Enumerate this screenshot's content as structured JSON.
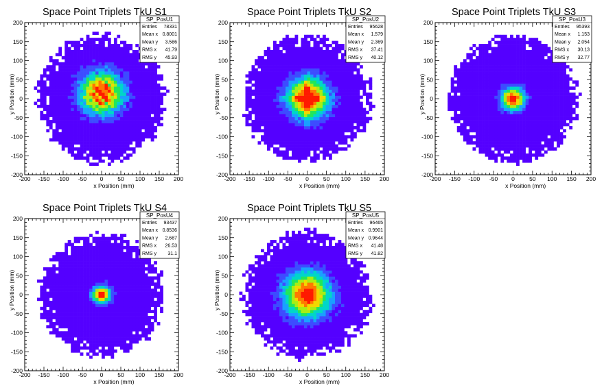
{
  "colors": {
    "background": "#ffffff",
    "axis": "#000000",
    "palette": [
      "#5400ff",
      "#3d4cff",
      "#1aa0ff",
      "#00d6c8",
      "#22e65a",
      "#a8ee14",
      "#f2d800",
      "#ff7800",
      "#ff1a00"
    ]
  },
  "chart_data": [
    {
      "type": "heatmap",
      "title": "Space Point Triplets TkU S1",
      "xlabel": "x Position (mm)",
      "ylabel": "y Position (mm)",
      "xlim": [
        -200,
        200
      ],
      "ylim": [
        -200,
        200
      ],
      "xticks": [
        -200,
        -150,
        -100,
        -50,
        0,
        50,
        100,
        150,
        200
      ],
      "yticks": [
        -200,
        -150,
        -100,
        -50,
        0,
        50,
        100,
        150,
        200
      ],
      "grid": false,
      "stats_box": {
        "name": "SP_PosU1",
        "rows": [
          {
            "label": "Entries",
            "value": "78331"
          },
          {
            "label": "Mean x",
            "value": "0.8001"
          },
          {
            "label": "Mean y",
            "value": "3.586"
          },
          {
            "label": "RMS x",
            "value": "41.79"
          },
          {
            "label": "RMS y",
            "value": "45.93"
          }
        ]
      },
      "distribution": {
        "center": [
          0,
          15
        ],
        "core_sigma": 38,
        "outer_radius": 165,
        "pattern": "diagonal-stripes"
      }
    },
    {
      "type": "heatmap",
      "title": "Space Point Triplets TkU S2",
      "xlabel": "x Position (mm)",
      "ylabel": "y Position (mm)",
      "xlim": [
        -200,
        200
      ],
      "ylim": [
        -200,
        200
      ],
      "xticks": [
        -200,
        -150,
        -100,
        -50,
        0,
        50,
        100,
        150,
        200
      ],
      "yticks": [
        -200,
        -150,
        -100,
        -50,
        0,
        50,
        100,
        150,
        200
      ],
      "grid": false,
      "stats_box": {
        "name": "SP_PosU2",
        "rows": [
          {
            "label": "Entries",
            "value": "95628"
          },
          {
            "label": "Mean x",
            "value": "1.579"
          },
          {
            "label": "Mean y",
            "value": "2.369"
          },
          {
            "label": "RMS x",
            "value": "37.41"
          },
          {
            "label": "RMS y",
            "value": "40.12"
          }
        ]
      },
      "distribution": {
        "center": [
          2,
          2
        ],
        "core_sigma": 36,
        "outer_radius": 165,
        "pattern": "cross"
      }
    },
    {
      "type": "heatmap",
      "title": "Space Point Triplets TkU S3",
      "xlabel": "x Position (mm)",
      "ylabel": "y Position (mm)",
      "xlim": [
        -200,
        200
      ],
      "ylim": [
        -200,
        200
      ],
      "xticks": [
        -200,
        -150,
        -100,
        -50,
        0,
        50,
        100,
        150,
        200
      ],
      "yticks": [
        -200,
        -150,
        -100,
        -50,
        0,
        50,
        100,
        150,
        200
      ],
      "grid": false,
      "stats_box": {
        "name": "SP_PosU3",
        "rows": [
          {
            "label": "Entries",
            "value": "95393"
          },
          {
            "label": "Mean x",
            "value": "1.153"
          },
          {
            "label": "Mean y",
            "value": "2.054"
          },
          {
            "label": "RMS x",
            "value": "30.13"
          },
          {
            "label": "RMS y",
            "value": "32.77"
          }
        ]
      },
      "distribution": {
        "center": [
          0,
          0
        ],
        "core_sigma": 20,
        "outer_radius": 165,
        "pattern": "none"
      }
    },
    {
      "type": "heatmap",
      "title": "Space Point Triplets TkU S4",
      "xlabel": "x Position (mm)",
      "ylabel": "y Position (mm)",
      "xlim": [
        -200,
        200
      ],
      "ylim": [
        -200,
        200
      ],
      "xticks": [
        -200,
        -150,
        -100,
        -50,
        0,
        50,
        100,
        150,
        200
      ],
      "yticks": [
        -200,
        -150,
        -100,
        -50,
        0,
        50,
        100,
        150,
        200
      ],
      "grid": false,
      "stats_box": {
        "name": "SP_PosU4",
        "rows": [
          {
            "label": "Entries",
            "value": "93437"
          },
          {
            "label": "Mean x",
            "value": "0.8536"
          },
          {
            "label": "Mean y",
            "value": "2.687"
          },
          {
            "label": "RMS x",
            "value": "26.53"
          },
          {
            "label": "RMS y",
            "value": "31.1"
          }
        ]
      },
      "distribution": {
        "center": [
          0,
          0
        ],
        "core_sigma": 16,
        "outer_radius": 160,
        "pattern": "none"
      }
    },
    {
      "type": "heatmap",
      "title": "Space Point Triplets TkU S5",
      "xlabel": "x Position (mm)",
      "ylabel": "y Position (mm)",
      "xlim": [
        -200,
        200
      ],
      "ylim": [
        -200,
        200
      ],
      "xticks": [
        -200,
        -150,
        -100,
        -50,
        0,
        50,
        100,
        150,
        200
      ],
      "yticks": [
        -200,
        -150,
        -100,
        -50,
        0,
        50,
        100,
        150,
        200
      ],
      "grid": false,
      "stats_box": {
        "name": "SP_PosU5",
        "rows": [
          {
            "label": "Entries",
            "value": "96465"
          },
          {
            "label": "Mean x",
            "value": "0.9901"
          },
          {
            "label": "Mean y",
            "value": "0.9644"
          },
          {
            "label": "RMS x",
            "value": "41.48"
          },
          {
            "label": "RMS y",
            "value": "41.82"
          }
        ]
      },
      "distribution": {
        "center": [
          0,
          0
        ],
        "core_sigma": 40,
        "outer_radius": 165,
        "pattern": "none"
      }
    }
  ]
}
